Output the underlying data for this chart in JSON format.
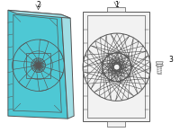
{
  "bg_color": "#ffffff",
  "line_color": "#555555",
  "blue_fill": "#4ec8d4",
  "blue_edge": "#2a8a96",
  "light_blue": "#a0dde4",
  "right_fill": "#f2f2f2",
  "label1": "1",
  "label2": "2",
  "label3": "3",
  "figsize": [
    2.0,
    1.47
  ],
  "dpi": 100
}
